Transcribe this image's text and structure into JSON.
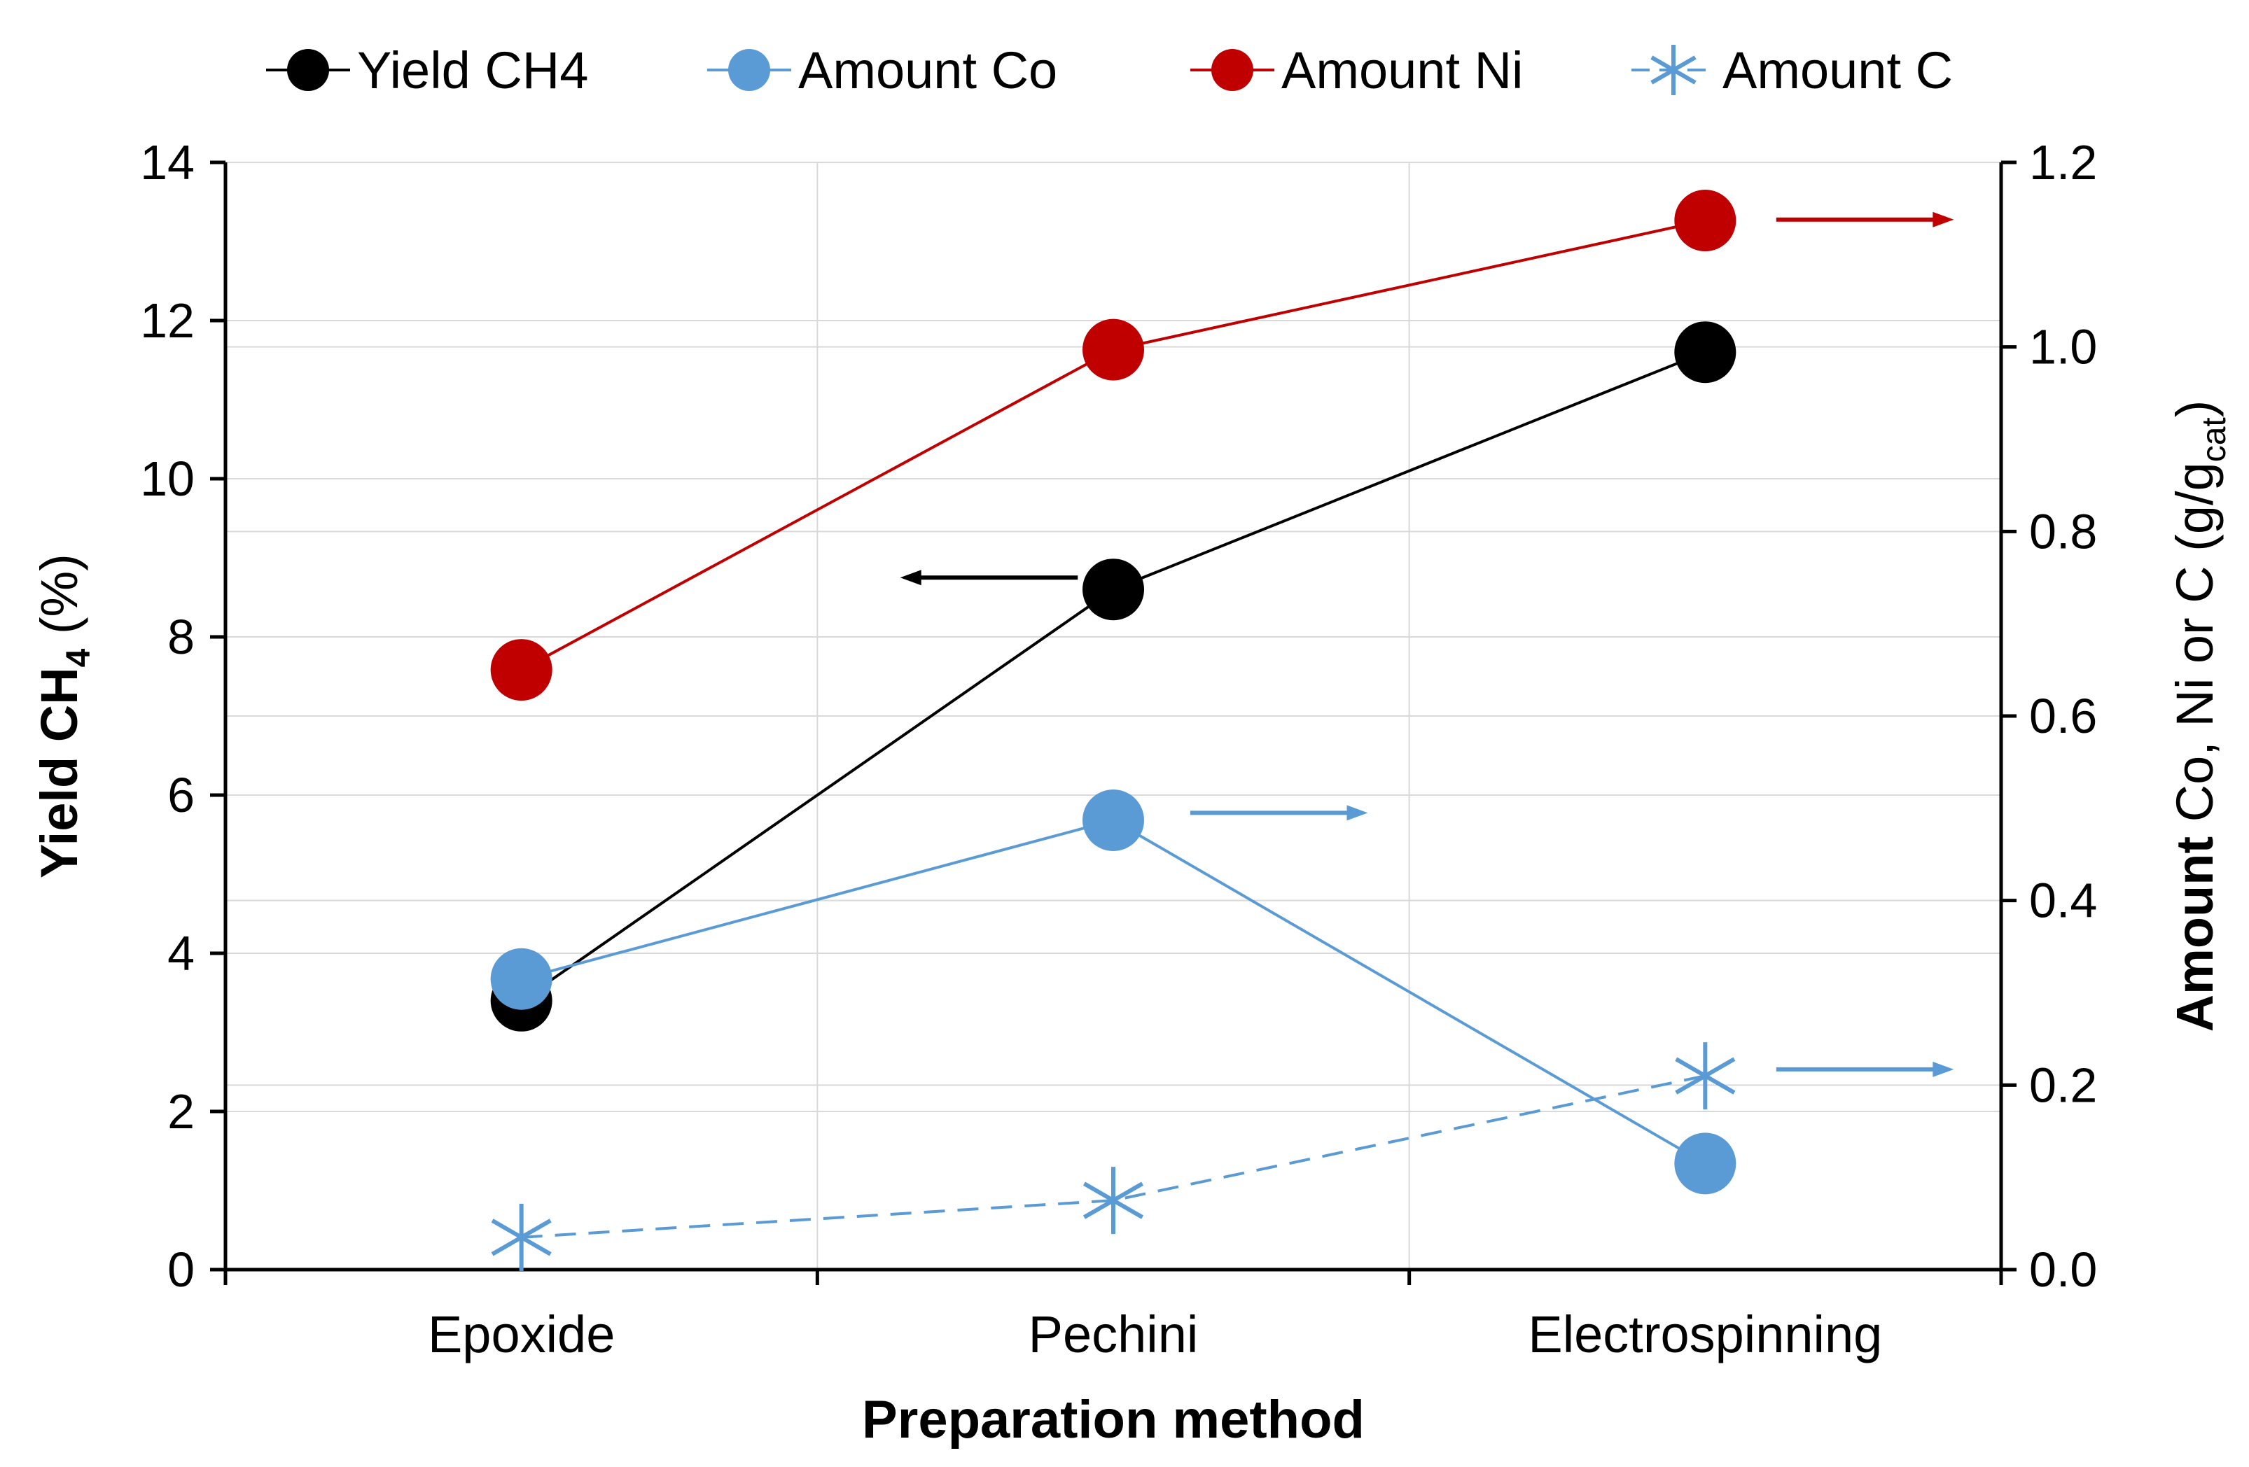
{
  "chart_data": {
    "type": "line",
    "categories": [
      "Epoxide",
      "Pechini",
      "Electrospinning"
    ],
    "xlabel": "Preparation method",
    "ylabel_left": {
      "bold": "Yield CH",
      "sub": "4",
      "rest": " (%)"
    },
    "ylabel_right": {
      "bold": "Amount",
      "rest": " Co, Ni or C (g/g",
      "sub": "cat",
      "end": ")"
    },
    "ylim_left": [
      0,
      14
    ],
    "yticks_left": [
      "0",
      "2",
      "4",
      "6",
      "8",
      "10",
      "12",
      "14"
    ],
    "ylim_right": [
      0,
      1.2
    ],
    "yticks_right": [
      "0.0",
      "0.2",
      "0.4",
      "0.6",
      "0.8",
      "1.0",
      "1.2"
    ],
    "grid": true,
    "legend_position": "top",
    "series": [
      {
        "name": "Yield CH4",
        "axis": "left",
        "values": [
          3.4,
          8.6,
          11.6
        ],
        "color": "#000000",
        "marker": "circle",
        "dash": false
      },
      {
        "name": "Amount Co",
        "axis": "right",
        "values": [
          0.315,
          0.487,
          0.115
        ],
        "color": "#5B9BD5",
        "marker": "circle",
        "dash": false
      },
      {
        "name": "Amount Ni",
        "axis": "right",
        "values": [
          0.65,
          0.997,
          1.137
        ],
        "color": "#C00000",
        "marker": "circle",
        "dash": false
      },
      {
        "name": "Amount C",
        "axis": "right",
        "values": [
          0.035,
          0.075,
          0.21
        ],
        "color": "#5B9BD5",
        "marker": "star",
        "dash": true
      }
    ],
    "annotations": [
      {
        "type": "arrow",
        "direction": "left",
        "color": "#000000",
        "axis": "left",
        "y": 8.75,
        "x_from": 0.94,
        "x_to": 0.64
      },
      {
        "type": "arrow",
        "direction": "right",
        "color": "#5B9BD5",
        "axis": "right",
        "y": 0.495,
        "x_from": 1.13,
        "x_to": 1.43
      },
      {
        "type": "arrow",
        "direction": "right",
        "color": "#C00000",
        "axis": "right",
        "y": 1.138,
        "x_from": 2.12,
        "x_to": 2.42
      },
      {
        "type": "arrow",
        "direction": "right",
        "color": "#5B9BD5",
        "axis": "right",
        "y": 0.217,
        "x_from": 2.12,
        "x_to": 2.42
      }
    ]
  }
}
